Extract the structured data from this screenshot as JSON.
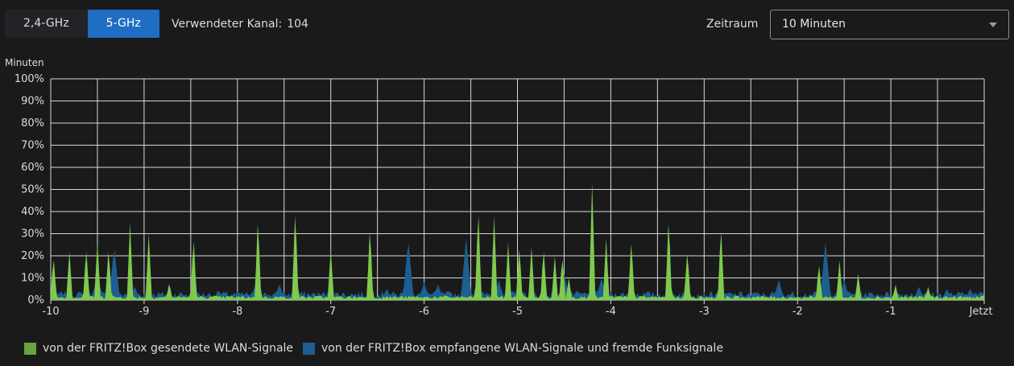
{
  "bands": [
    {
      "label": "2,4-GHz",
      "active": false
    },
    {
      "label": "5-GHz",
      "active": true
    }
  ],
  "channel": {
    "label": "Verwendeter Kanal:",
    "value": "104"
  },
  "zeitraum": {
    "label": "Zeitraum",
    "selected": "10 Minuten"
  },
  "colors": {
    "sent": "#7fc94e",
    "received": "#1d5e93",
    "grid": "#d8d8d8",
    "background": "#1a1a1b"
  },
  "chart_data": {
    "type": "area",
    "ylabel": "Minuten",
    "y_ticks": [
      "0%",
      "10%",
      "20%",
      "30%",
      "40%",
      "50%",
      "60%",
      "70%",
      "80%",
      "90%",
      "100%"
    ],
    "ylim": [
      0,
      100
    ],
    "x_ticks": [
      "-10",
      "-9",
      "-8",
      "-7",
      "-6",
      "-5",
      "-4",
      "-3",
      "-2",
      "-1",
      "Jetzt"
    ],
    "xlim": [
      -10,
      0
    ],
    "grid": true,
    "legend_position": "bottom-left",
    "series": [
      {
        "name": "von der FRITZ!Box gesendete WLAN-Signale",
        "peaks": [
          [
            -9.97,
            20
          ],
          [
            -9.8,
            22
          ],
          [
            -9.62,
            24
          ],
          [
            -9.5,
            26
          ],
          [
            -9.38,
            24
          ],
          [
            -9.15,
            35
          ],
          [
            -8.95,
            30
          ],
          [
            -8.73,
            8
          ],
          [
            -8.47,
            29
          ],
          [
            -7.78,
            38
          ],
          [
            -7.38,
            42
          ],
          [
            -7.0,
            23
          ],
          [
            -6.58,
            34
          ],
          [
            -5.42,
            42
          ],
          [
            -5.25,
            38
          ],
          [
            -5.1,
            26
          ],
          [
            -4.98,
            25
          ],
          [
            -4.85,
            24
          ],
          [
            -4.72,
            24
          ],
          [
            -4.6,
            20
          ],
          [
            -4.52,
            20
          ],
          [
            -4.45,
            10
          ],
          [
            -4.2,
            53
          ],
          [
            -4.05,
            28
          ],
          [
            -3.78,
            28
          ],
          [
            -3.38,
            38
          ],
          [
            -3.18,
            23
          ],
          [
            -2.82,
            34
          ],
          [
            -1.77,
            17
          ],
          [
            -1.55,
            18
          ],
          [
            -1.35,
            12
          ],
          [
            -0.95,
            7
          ],
          [
            -0.6,
            6
          ]
        ]
      },
      {
        "name": "von der FRITZ!Box empfangene WLAN-Signale und fremde Funksignale",
        "peaks": [
          [
            -9.85,
            3
          ],
          [
            -9.5,
            12
          ],
          [
            -9.32,
            24
          ],
          [
            -9.1,
            6
          ],
          [
            -8.2,
            4
          ],
          [
            -7.8,
            8
          ],
          [
            -7.55,
            7
          ],
          [
            -6.4,
            5
          ],
          [
            -6.17,
            27
          ],
          [
            -6.0,
            8
          ],
          [
            -5.85,
            7
          ],
          [
            -5.55,
            28
          ],
          [
            -5.2,
            9
          ],
          [
            -4.5,
            12
          ],
          [
            -4.1,
            10
          ],
          [
            -2.2,
            9
          ],
          [
            -1.7,
            26
          ],
          [
            -1.5,
            9
          ],
          [
            -0.7,
            6
          ],
          [
            -0.4,
            5
          ],
          [
            -0.15,
            5
          ]
        ]
      }
    ]
  }
}
